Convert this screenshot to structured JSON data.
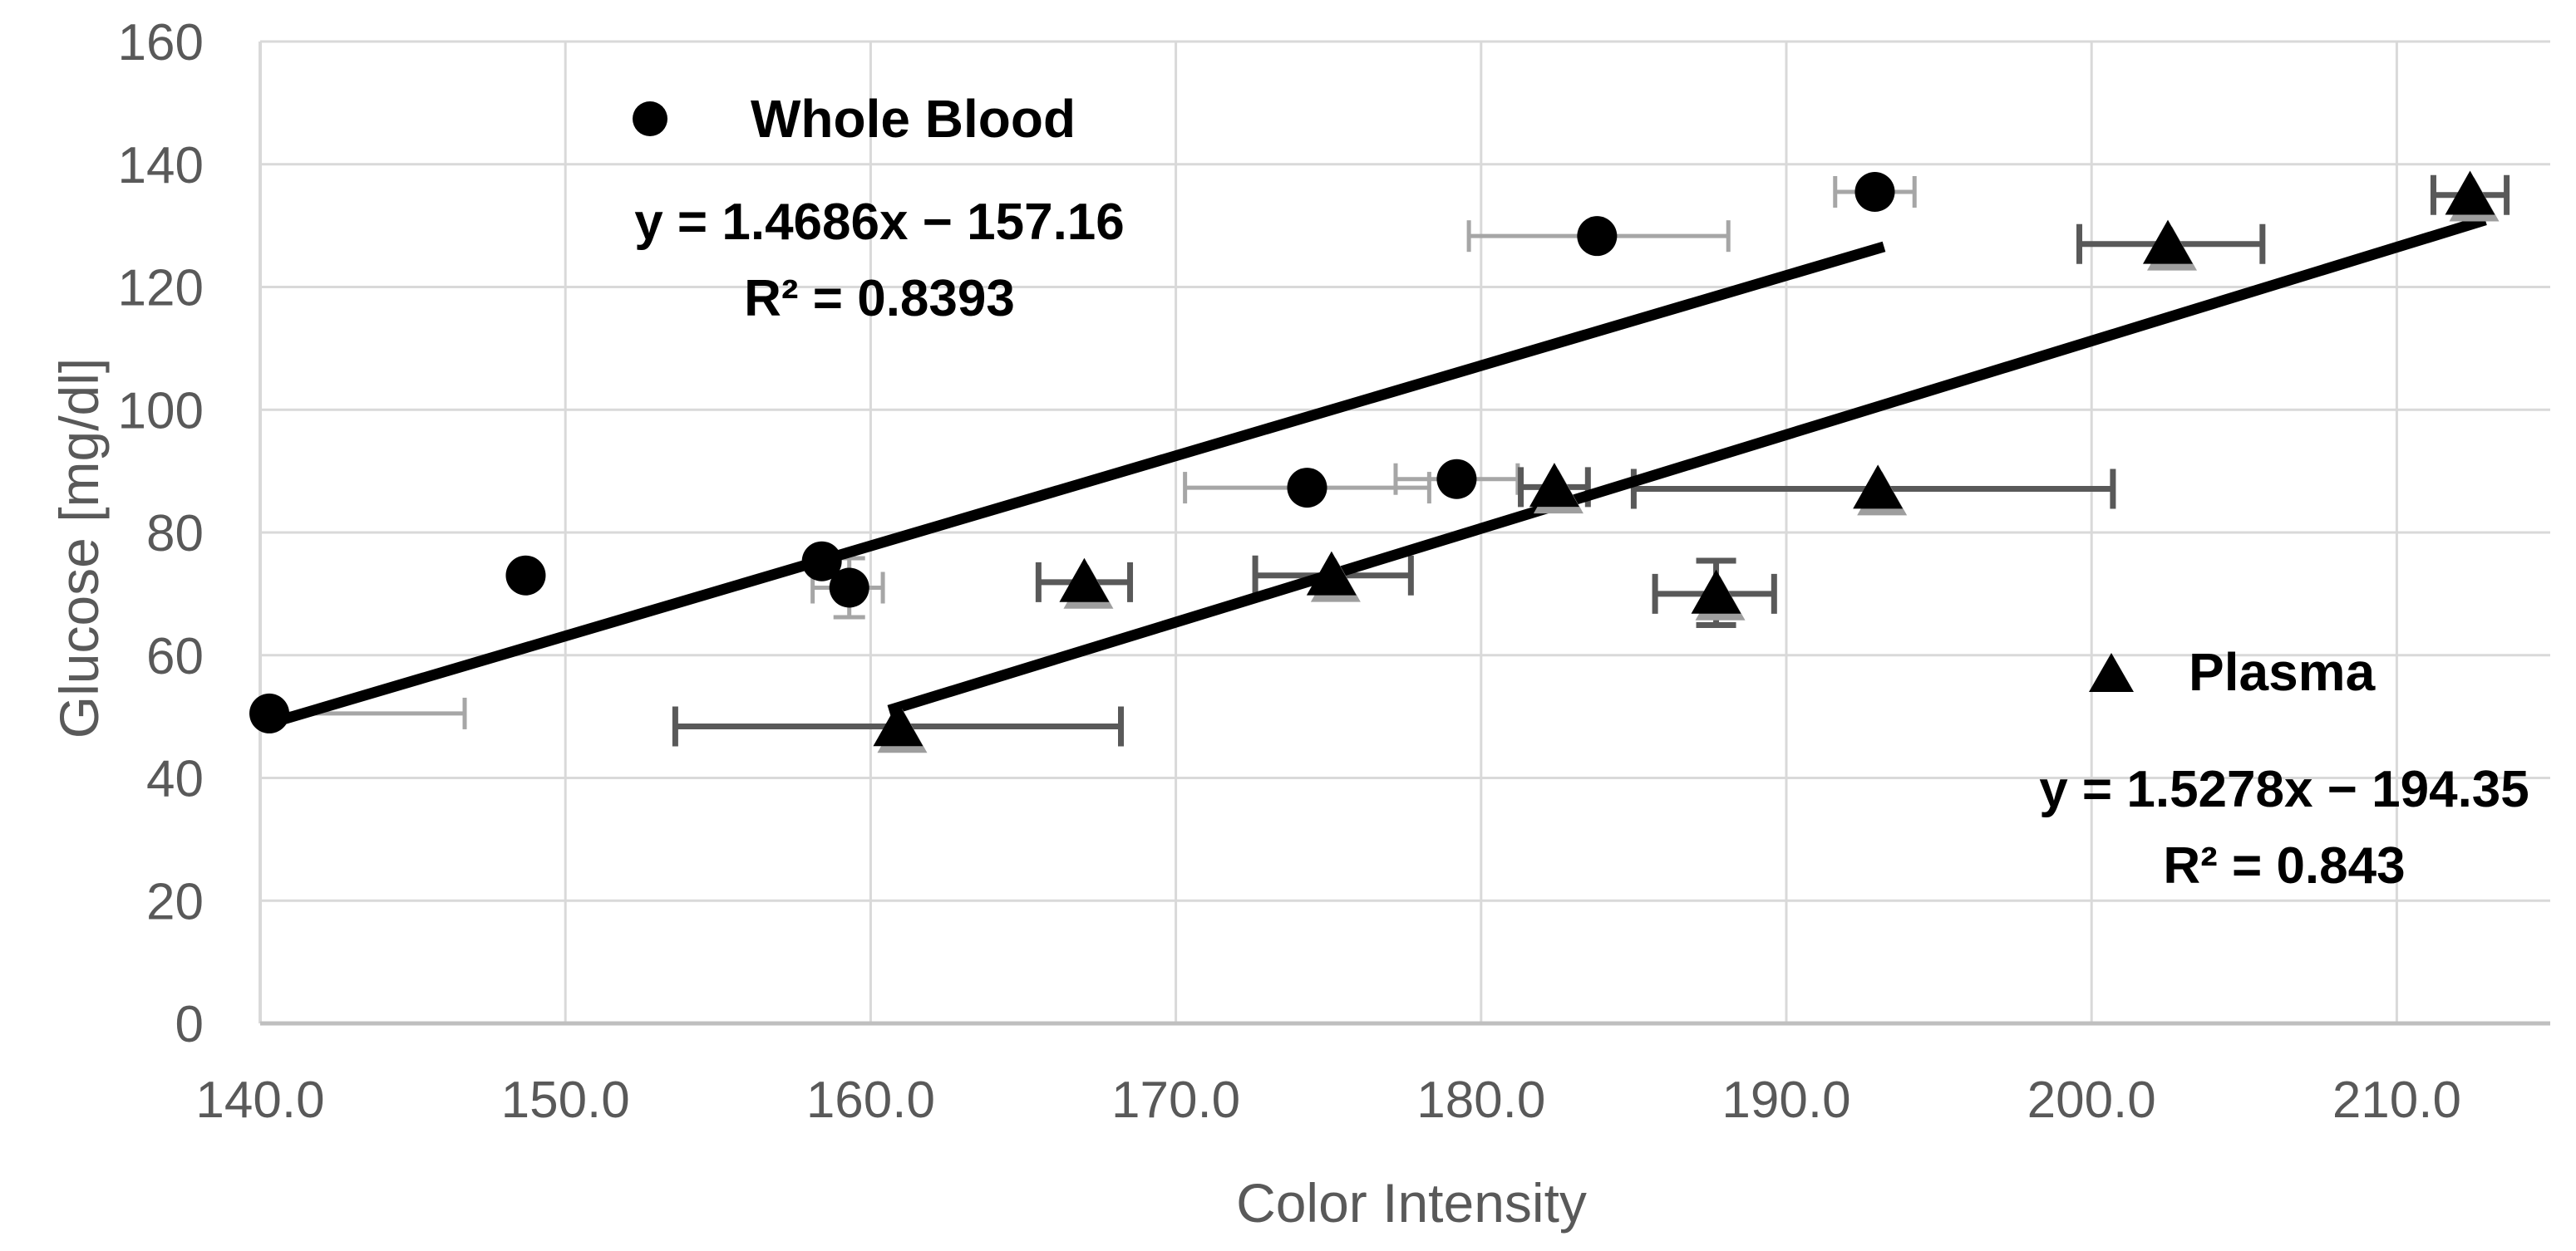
{
  "chart_data": {
    "type": "scatter",
    "title": "",
    "xlabel": "Color Intensity",
    "ylabel": "Glucose [mg/dl]",
    "xlim": [
      140,
      215
    ],
    "ylim": [
      0,
      160
    ],
    "grid": true,
    "legend_position": "inside-plot",
    "x_ticks": [
      {
        "v": 140,
        "label": "140.0"
      },
      {
        "v": 150,
        "label": "150.0"
      },
      {
        "v": 160,
        "label": "160.0"
      },
      {
        "v": 170,
        "label": "170.0"
      },
      {
        "v": 180,
        "label": "180.0"
      },
      {
        "v": 190,
        "label": "190.0"
      },
      {
        "v": 200,
        "label": "200.0"
      },
      {
        "v": 210,
        "label": "210.0"
      }
    ],
    "y_ticks": [
      {
        "v": 0,
        "label": "0"
      },
      {
        "v": 20,
        "label": "20"
      },
      {
        "v": 40,
        "label": "40"
      },
      {
        "v": 60,
        "label": "60"
      },
      {
        "v": 80,
        "label": "80"
      },
      {
        "v": 100,
        "label": "100"
      },
      {
        "v": 120,
        "label": "120"
      },
      {
        "v": 140,
        "label": "140"
      },
      {
        "v": 160,
        "label": "160"
      }
    ],
    "series": [
      {
        "name": "Whole Blood",
        "marker": "circle",
        "color": "#000000",
        "error_bar_color": "#a6a6a6",
        "trendline": {
          "equation": "y = 1.4686x − 157.16",
          "r_squared": "R² = 0.8393",
          "slope": 1.4686,
          "intercept": -157.16,
          "x_start": 140.3,
          "x_end": 193.2
        },
        "points": [
          {
            "x": 140.3,
            "y": 50.5,
            "x_lo": 140.1,
            "x_hi": 146.7
          },
          {
            "x": 148.7,
            "y": 73.0
          },
          {
            "x": 158.4,
            "y": 75.3
          },
          {
            "x": 159.3,
            "y": 71.0,
            "x_lo": 158.1,
            "x_hi": 160.4,
            "y_lo": 66.2,
            "y_hi": 75.8
          },
          {
            "x": 174.3,
            "y": 87.3,
            "x_lo": 170.3,
            "x_hi": 178.3
          },
          {
            "x": 179.2,
            "y": 88.7,
            "x_lo": 177.2,
            "x_hi": 181.2
          },
          {
            "x": 183.8,
            "y": 128.3,
            "x_lo": 179.6,
            "x_hi": 188.1
          },
          {
            "x": 192.9,
            "y": 135.5,
            "x_lo": 191.6,
            "x_hi": 194.2
          }
        ]
      },
      {
        "name": "Plasma",
        "marker": "triangle",
        "color": "#000000",
        "error_bar_color": "#595959",
        "trendline": {
          "equation": "y = 1.5278x − 194.35",
          "r_squared": "R² = 0.843",
          "slope": 1.5278,
          "intercept": -194.35,
          "x_start": 160.6,
          "x_end": 212.9
        },
        "points": [
          {
            "x": 160.9,
            "y": 48.4,
            "x_lo": 153.6,
            "x_hi": 168.2
          },
          {
            "x": 167.0,
            "y": 71.9,
            "x_lo": 165.5,
            "x_hi": 168.5
          },
          {
            "x": 175.1,
            "y": 73.0,
            "x_lo": 172.6,
            "x_hi": 177.7
          },
          {
            "x": 182.4,
            "y": 87.4,
            "x_lo": 181.3,
            "x_hi": 183.5
          },
          {
            "x": 187.7,
            "y": 70.0,
            "x_lo": 185.7,
            "x_hi": 189.6,
            "y_lo": 64.9,
            "y_hi": 75.4
          },
          {
            "x": 193.0,
            "y": 87.1,
            "x_lo": 185.0,
            "x_hi": 200.7
          },
          {
            "x": 202.5,
            "y": 127.0,
            "x_lo": 199.6,
            "x_hi": 205.6
          },
          {
            "x": 212.4,
            "y": 135.0,
            "x_lo": 211.2,
            "x_hi": 213.6
          }
        ]
      }
    ]
  },
  "colors": {
    "gridline": "#d9d9d9",
    "axis_line": "#bfbfbf",
    "tick_text": "#595959",
    "axis_title_text": "#595959",
    "annotation_text": "#000000",
    "marker": "#000000",
    "triangle_shadow": "#9e9e9e"
  }
}
